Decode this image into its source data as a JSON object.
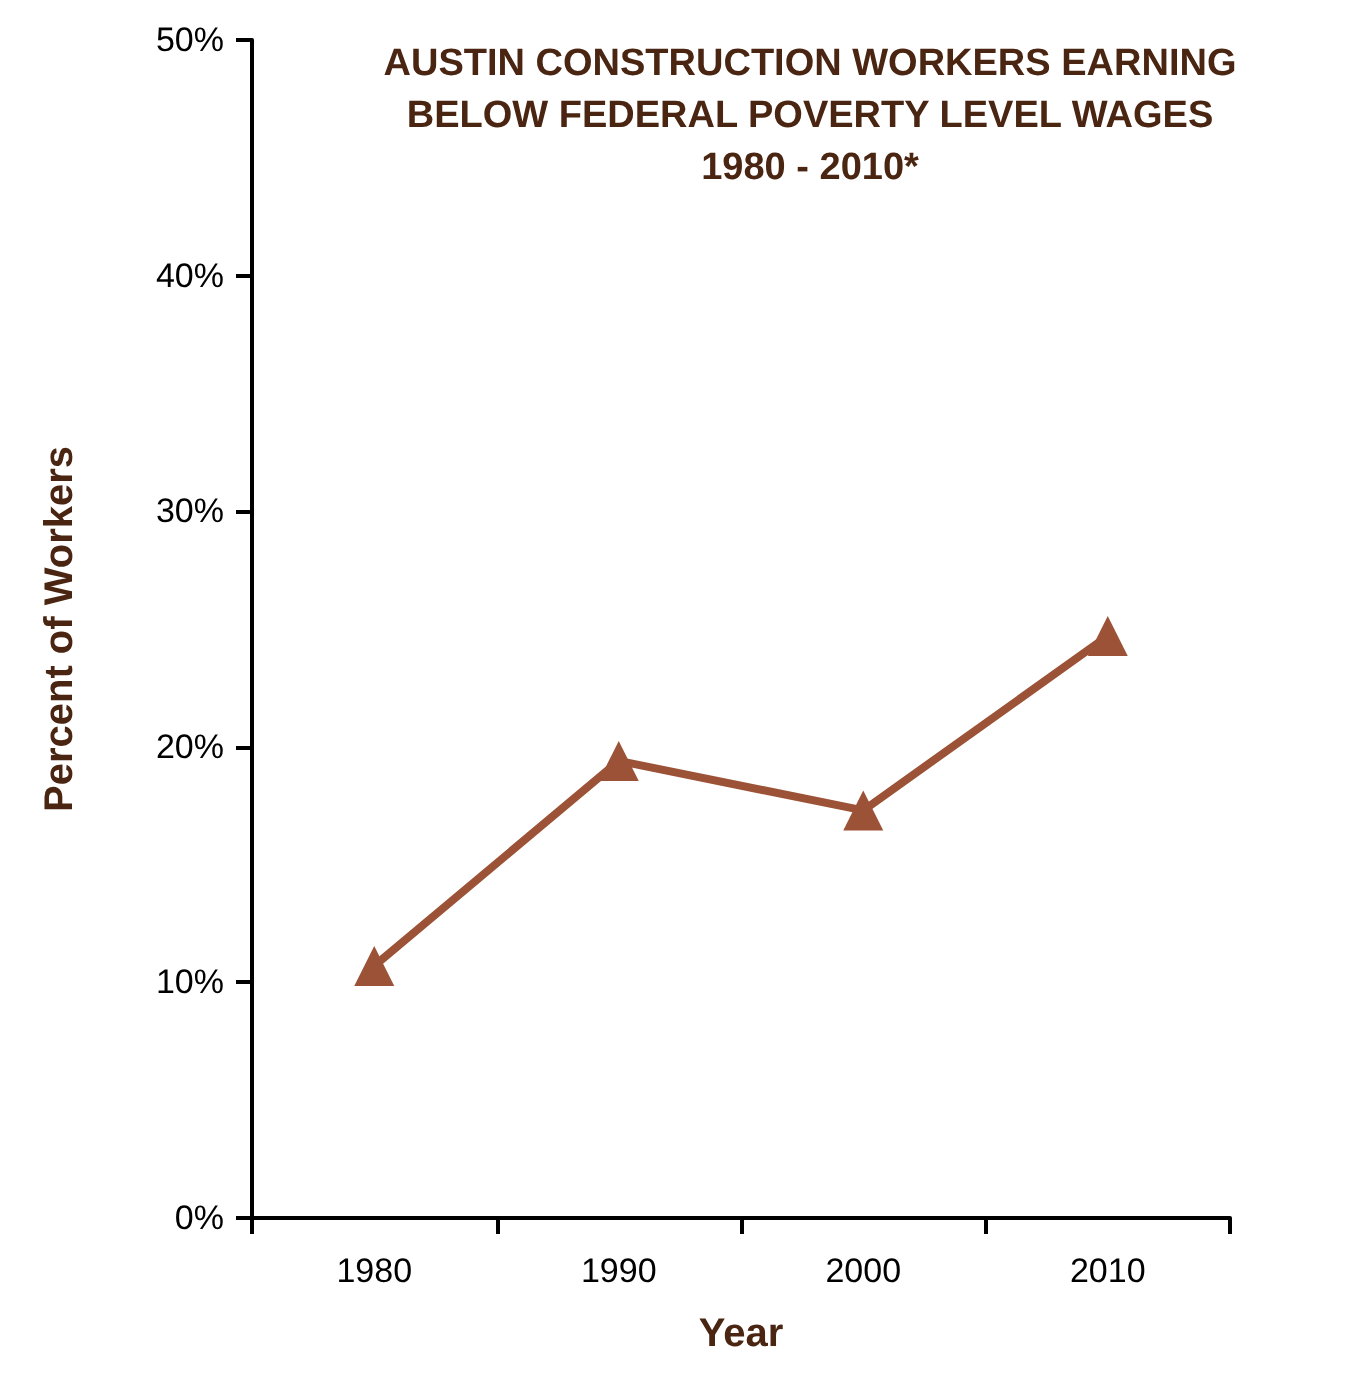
{
  "chart_data": {
    "type": "line",
    "title": "AUSTIN CONSTRUCTION WORKERS EARNING\nBELOW FEDERAL POVERTY LEVEL WAGES\n1980 - 2010*",
    "xlabel": "Year",
    "ylabel": "Percent of Workers",
    "categories": [
      "1980",
      "1990",
      "2000",
      "2010"
    ],
    "series": [
      {
        "color": "#9c5236",
        "values": [
          10.7,
          19.4,
          17.3,
          24.7
        ]
      }
    ],
    "ylim": [
      0,
      50
    ],
    "yticks": [
      {
        "value": 0,
        "label": "0%"
      },
      {
        "value": 10,
        "label": "10%"
      },
      {
        "value": 20,
        "label": "20%"
      },
      {
        "value": 30,
        "label": "30%"
      },
      {
        "value": 40,
        "label": "40%"
      },
      {
        "value": 50,
        "label": "50%"
      }
    ],
    "grid": false,
    "marker": "triangle",
    "line_style": "solid"
  }
}
